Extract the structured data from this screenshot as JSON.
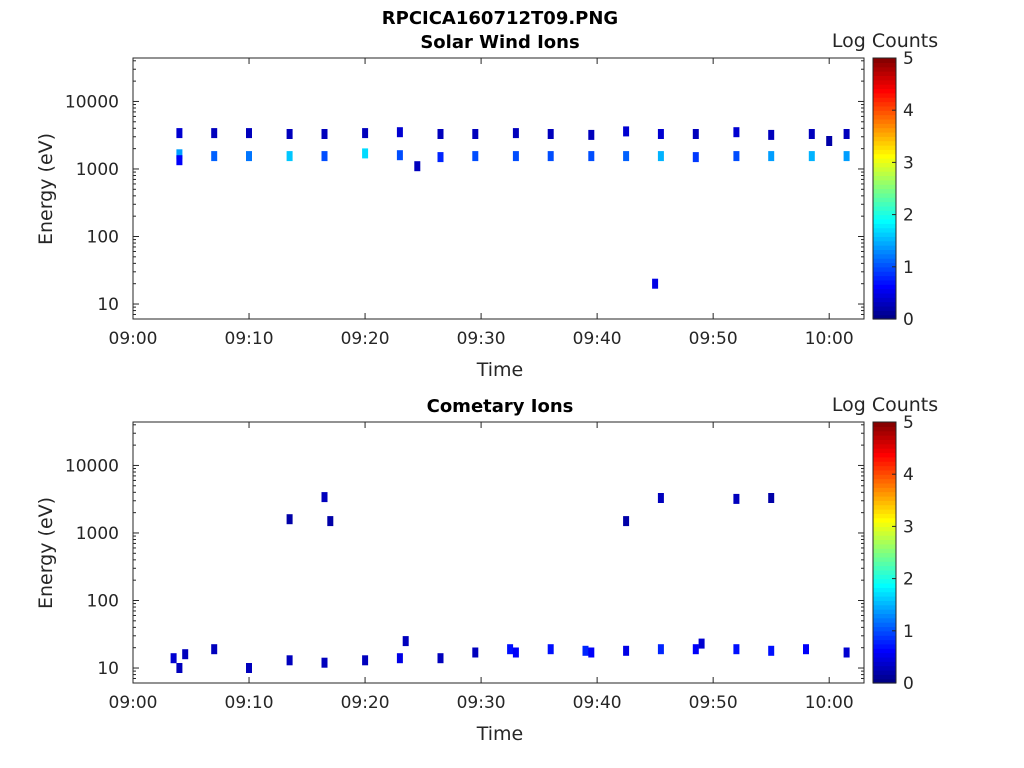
{
  "figure_title": "RPCICA160712T09.PNG",
  "chart_data": [
    {
      "type": "heatmap",
      "title": "Solar Wind Ions",
      "xlabel": "Time",
      "ylabel": "Energy (eV)",
      "x_range": [
        "09:00",
        "10:03"
      ],
      "x_ticks": [
        "09:00",
        "09:10",
        "09:20",
        "09:30",
        "09:40",
        "09:50",
        "10:00"
      ],
      "y_scale": "log",
      "ylim": [
        6,
        44000
      ],
      "y_ticks": [
        10,
        100,
        1000,
        10000
      ],
      "y_tick_labels": [
        "10",
        "100",
        "1000",
        "10000"
      ],
      "colorbar": {
        "label": "Log Counts",
        "min": 0,
        "max": 5,
        "ticks": [
          "0",
          "1",
          "2",
          "3",
          "4",
          "5"
        ],
        "colormap": "jet"
      },
      "grid": false,
      "cells": [
        {
          "t": "09:04",
          "e": 3400,
          "v": 0.4
        },
        {
          "t": "09:04",
          "e": 1650,
          "v": 1.4
        },
        {
          "t": "09:04",
          "e": 1350,
          "v": 0.6
        },
        {
          "t": "09:07",
          "e": 3400,
          "v": 0.3
        },
        {
          "t": "09:07",
          "e": 1550,
          "v": 1.1
        },
        {
          "t": "09:10",
          "e": 3400,
          "v": 0.3
        },
        {
          "t": "09:10",
          "e": 1550,
          "v": 1.2
        },
        {
          "t": "09:13.5",
          "e": 3300,
          "v": 0.3
        },
        {
          "t": "09:13.5",
          "e": 1550,
          "v": 1.6
        },
        {
          "t": "09:16.5",
          "e": 3300,
          "v": 0.3
        },
        {
          "t": "09:16.5",
          "e": 1550,
          "v": 1.0
        },
        {
          "t": "09:20",
          "e": 3400,
          "v": 0.3
        },
        {
          "t": "09:20",
          "e": 1700,
          "v": 1.7
        },
        {
          "t": "09:23",
          "e": 3500,
          "v": 0.4
        },
        {
          "t": "09:23",
          "e": 1600,
          "v": 1.0
        },
        {
          "t": "09:24.5",
          "e": 1100,
          "v": 0.3
        },
        {
          "t": "09:26.5",
          "e": 3300,
          "v": 0.3
        },
        {
          "t": "09:26.5",
          "e": 1500,
          "v": 0.8
        },
        {
          "t": "09:29.5",
          "e": 3300,
          "v": 0.3
        },
        {
          "t": "09:29.5",
          "e": 1550,
          "v": 1.0
        },
        {
          "t": "09:33",
          "e": 3400,
          "v": 0.3
        },
        {
          "t": "09:33",
          "e": 1550,
          "v": 1.0
        },
        {
          "t": "09:36",
          "e": 3300,
          "v": 0.3
        },
        {
          "t": "09:36",
          "e": 1550,
          "v": 1.0
        },
        {
          "t": "09:39.5",
          "e": 3200,
          "v": 0.3
        },
        {
          "t": "09:39.5",
          "e": 1550,
          "v": 1.0
        },
        {
          "t": "09:42.5",
          "e": 3600,
          "v": 0.4
        },
        {
          "t": "09:42.5",
          "e": 1550,
          "v": 1.1
        },
        {
          "t": "09:45",
          "e": 20,
          "v": 0.5
        },
        {
          "t": "09:45.5",
          "e": 3300,
          "v": 0.4
        },
        {
          "t": "09:45.5",
          "e": 1550,
          "v": 1.5
        },
        {
          "t": "09:48.5",
          "e": 3300,
          "v": 0.3
        },
        {
          "t": "09:48.5",
          "e": 1500,
          "v": 0.9
        },
        {
          "t": "09:52",
          "e": 3500,
          "v": 0.4
        },
        {
          "t": "09:52",
          "e": 1550,
          "v": 1.0
        },
        {
          "t": "09:55",
          "e": 3200,
          "v": 0.3
        },
        {
          "t": "09:55",
          "e": 1550,
          "v": 1.4
        },
        {
          "t": "09:58.5",
          "e": 3300,
          "v": 0.3
        },
        {
          "t": "09:58.5",
          "e": 1550,
          "v": 1.5
        },
        {
          "t": "10:00",
          "e": 2600,
          "v": 0.2
        },
        {
          "t": "10:01.5",
          "e": 3300,
          "v": 0.3
        },
        {
          "t": "10:01.5",
          "e": 1550,
          "v": 1.4
        }
      ]
    },
    {
      "type": "heatmap",
      "title": "Cometary Ions",
      "xlabel": "Time",
      "ylabel": "Energy (eV)",
      "x_range": [
        "09:00",
        "10:03"
      ],
      "x_ticks": [
        "09:00",
        "09:10",
        "09:20",
        "09:30",
        "09:40",
        "09:50",
        "10:00"
      ],
      "y_scale": "log",
      "ylim": [
        6,
        44000
      ],
      "y_ticks": [
        10,
        100,
        1000,
        10000
      ],
      "y_tick_labels": [
        "10",
        "100",
        "1000",
        "10000"
      ],
      "colorbar": {
        "label": "Log Counts",
        "min": 0,
        "max": 5,
        "ticks": [
          "0",
          "1",
          "2",
          "3",
          "4",
          "5"
        ],
        "colormap": "jet"
      },
      "grid": false,
      "cells": [
        {
          "t": "09:03.5",
          "e": 14,
          "v": 0.4
        },
        {
          "t": "09:04",
          "e": 10,
          "v": 0.3
        },
        {
          "t": "09:04.5",
          "e": 16,
          "v": 0.3
        },
        {
          "t": "09:07",
          "e": 19,
          "v": 0.3
        },
        {
          "t": "09:10",
          "e": 10,
          "v": 0.3
        },
        {
          "t": "09:13.5",
          "e": 1600,
          "v": 0.2
        },
        {
          "t": "09:13.5",
          "e": 13,
          "v": 0.3
        },
        {
          "t": "09:16.5",
          "e": 3400,
          "v": 0.3
        },
        {
          "t": "09:16.5",
          "e": 12,
          "v": 0.3
        },
        {
          "t": "09:17",
          "e": 1500,
          "v": 0.2
        },
        {
          "t": "09:20",
          "e": 13,
          "v": 0.3
        },
        {
          "t": "09:23",
          "e": 14,
          "v": 0.5
        },
        {
          "t": "09:23.5",
          "e": 25,
          "v": 0.3
        },
        {
          "t": "09:26.5",
          "e": 14,
          "v": 0.3
        },
        {
          "t": "09:29.5",
          "e": 17,
          "v": 0.3
        },
        {
          "t": "09:32.5",
          "e": 19,
          "v": 0.7
        },
        {
          "t": "09:33",
          "e": 17,
          "v": 0.6
        },
        {
          "t": "09:36",
          "e": 19,
          "v": 0.7
        },
        {
          "t": "09:39",
          "e": 18,
          "v": 0.8
        },
        {
          "t": "09:39.5",
          "e": 17,
          "v": 0.6
        },
        {
          "t": "09:42.5",
          "e": 1500,
          "v": 0.2
        },
        {
          "t": "09:42.5",
          "e": 18,
          "v": 0.5
        },
        {
          "t": "09:45.5",
          "e": 3300,
          "v": 0.3
        },
        {
          "t": "09:45.5",
          "e": 19,
          "v": 0.8
        },
        {
          "t": "09:48.5",
          "e": 19,
          "v": 0.6
        },
        {
          "t": "09:49",
          "e": 23,
          "v": 0.4
        },
        {
          "t": "09:52",
          "e": 3200,
          "v": 0.3
        },
        {
          "t": "09:52",
          "e": 19,
          "v": 0.7
        },
        {
          "t": "09:55",
          "e": 3300,
          "v": 0.2
        },
        {
          "t": "09:55",
          "e": 18,
          "v": 0.7
        },
        {
          "t": "09:58",
          "e": 19,
          "v": 0.6
        },
        {
          "t": "10:01.5",
          "e": 17,
          "v": 0.4
        }
      ]
    }
  ]
}
